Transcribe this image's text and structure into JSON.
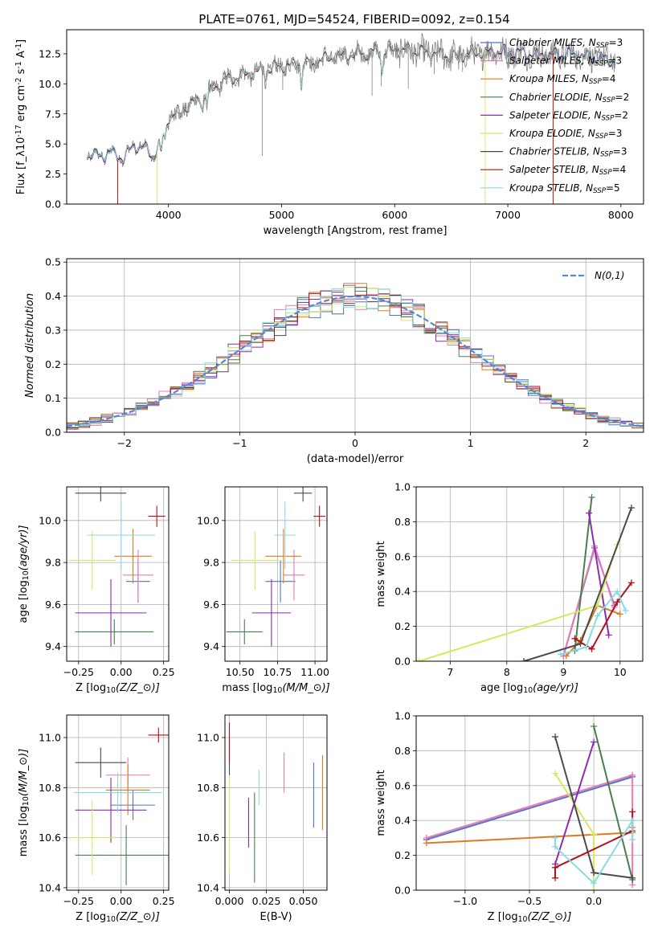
{
  "title": "PLATE=0761, MJD=54524, FIBERID=0092, z=0.154",
  "colors": {
    "Chabrier MILES": "#4f73cf",
    "Salpeter MILES": "#e978b3",
    "Kroupa MILES": "#e07a1f",
    "Chabrier ELODIE": "#4a7d4f",
    "Salpeter ELODIE": "#8e2ab0",
    "Kroupa ELODIE": "#d6e85f",
    "Chabrier STELIB": "#4a4a4a",
    "Salpeter STELIB": "#b0121b",
    "Kroupa STELIB": "#87dbe5",
    "data": "#808080",
    "normal": "#4f8ad6"
  },
  "legend_entries": [
    "Chabrier MILES, N$_{SSP}$=3",
    "Salpeter MILES, N$_{SSP}$=3",
    "Kroupa MILES, N$_{SSP}$=4",
    "Chabrier ELODIE, N$_{SSP}$=2",
    "Salpeter ELODIE, N$_{SSP}$=2",
    "Kroupa ELODIE, N$_{SSP}$=3",
    "Chabrier STELIB, N$_{SSP}$=3",
    "Salpeter STELIB, N$_{SSP}$=4",
    "Kroupa STELIB, N$_{SSP}$=5"
  ],
  "chart_data": [
    {
      "type": "line",
      "panel": "spectrum",
      "xlabel": "wavelength [Angstrom, rest frame]",
      "ylabel": "Flux [f$_\\lambda$10$^{-17}$ erg cm$^{-2}$ s$^{-1}$ A$^{-1}$]",
      "xlim": [
        3100,
        8200
      ],
      "ylim": [
        0,
        14.5
      ],
      "xticks": [
        "4000",
        "5000",
        "6000",
        "7000",
        "8000"
      ],
      "yticks": [
        "0.0",
        "2.5",
        "5.0",
        "7.5",
        "10.0",
        "12.5"
      ],
      "continuum_x": [
        3280,
        3400,
        3500,
        3600,
        3700,
        3800,
        3870,
        3950,
        4000,
        4100,
        4200,
        4300,
        4400,
        4500,
        4700,
        4900,
        5100,
        5300,
        5500,
        5700,
        5900,
        6100,
        6300,
        6500,
        6700,
        6900,
        7100,
        7300,
        7500,
        7700,
        7900
      ],
      "continuum_y": [
        4.1,
        4.0,
        4.3,
        3.8,
        4.9,
        4.6,
        3.9,
        5.8,
        7.2,
        7.8,
        8.3,
        8.9,
        9.6,
        10.3,
        10.8,
        11.3,
        11.6,
        11.9,
        12.3,
        12.5,
        12.7,
        12.8,
        12.6,
        12.3,
        12.5,
        12.7,
        12.6,
        12.4,
        12.5,
        12.3,
        12.0
      ],
      "grid": false,
      "legend": "right"
    },
    {
      "type": "step",
      "panel": "residuals",
      "xlabel": "(data-model)/error",
      "ylabel": "Normed distribution",
      "xlim": [
        -2.5,
        2.5
      ],
      "ylim": [
        0,
        0.51
      ],
      "xticks": [
        "−2",
        "−1",
        "0",
        "1",
        "2"
      ],
      "yticks": [
        "0.0",
        "0.1",
        "0.2",
        "0.3",
        "0.4",
        "0.5"
      ],
      "reference": {
        "label": "$\\mathcal{N}(0,1)$",
        "mean": 0,
        "sigma": 1
      },
      "bin_width": 0.1,
      "grid": true,
      "legend": "upper right"
    },
    {
      "type": "errorbar",
      "panel": "age-Z",
      "xlabel": "Z [log$_{10}$(Z/Z$_\\odot$)]",
      "ylabel": "age  [log$_{10}$(age/yr)]",
      "xlim": [
        -0.32,
        0.28
      ],
      "ylim": [
        9.33,
        10.16
      ],
      "xticks": [
        "−0.25",
        "0.00",
        "0.25"
      ],
      "yticks": [
        "9.4",
        "9.6",
        "9.8",
        "10.0"
      ],
      "grid": true,
      "points": [
        {
          "model": "Chabrier MILES",
          "x": 0.1,
          "xerr": 0.07,
          "y": 9.71,
          "yerr": 0.1
        },
        {
          "model": "Salpeter MILES",
          "x": 0.1,
          "xerr": 0.09,
          "y": 9.74,
          "yerr": 0.12
        },
        {
          "model": "Kroupa MILES",
          "x": 0.07,
          "xerr": 0.11,
          "y": 9.83,
          "yerr": 0.13
        },
        {
          "model": "Chabrier ELODIE",
          "x": -0.04,
          "xerr": 0.23,
          "y": 9.47,
          "yerr": 0.06
        },
        {
          "model": "Salpeter ELODIE",
          "x": -0.06,
          "xerr": 0.21,
          "y": 9.56,
          "yerr": 0.16
        },
        {
          "model": "Kroupa ELODIE",
          "x": -0.17,
          "xerr": 0.14,
          "y": 9.81,
          "yerr": 0.14
        },
        {
          "model": "Chabrier STELIB",
          "x": -0.12,
          "xerr": 0.15,
          "y": 10.13,
          "yerr": 0.04
        },
        {
          "model": "Salpeter STELIB",
          "x": 0.21,
          "xerr": 0.05,
          "y": 10.02,
          "yerr": 0.05
        },
        {
          "model": "Kroupa STELIB",
          "x": 0.0,
          "xerr": 0.2,
          "y": 9.93,
          "yerr": 0.16
        }
      ]
    },
    {
      "type": "errorbar",
      "panel": "age-mass",
      "xlabel": "mass [log$_{10}$(M/M$_\\odot$)]",
      "xlim": [
        10.4,
        11.08
      ],
      "ylim": [
        9.33,
        10.16
      ],
      "xticks": [
        "10.50",
        "10.75",
        "11.00"
      ],
      "yticks": [
        "9.4",
        "9.6",
        "9.8",
        "10.0"
      ],
      "grid": true,
      "points": [
        {
          "model": "Chabrier MILES",
          "x": 10.77,
          "xerr": 0.1,
          "y": 9.71,
          "yerr": 0.1
        },
        {
          "model": "Salpeter MILES",
          "x": 10.86,
          "xerr": 0.07,
          "y": 9.74,
          "yerr": 0.12
        },
        {
          "model": "Kroupa MILES",
          "x": 10.79,
          "xerr": 0.12,
          "y": 9.83,
          "yerr": 0.13
        },
        {
          "model": "Chabrier ELODIE",
          "x": 10.53,
          "xerr": 0.12,
          "y": 9.47,
          "yerr": 0.06
        },
        {
          "model": "Salpeter ELODIE",
          "x": 10.71,
          "xerr": 0.13,
          "y": 9.56,
          "yerr": 0.16
        },
        {
          "model": "Kroupa ELODIE",
          "x": 10.6,
          "xerr": 0.16,
          "y": 9.81,
          "yerr": 0.14
        },
        {
          "model": "Chabrier STELIB",
          "x": 10.92,
          "xerr": 0.06,
          "y": 10.13,
          "yerr": 0.04
        },
        {
          "model": "Salpeter STELIB",
          "x": 11.03,
          "xerr": 0.04,
          "y": 10.02,
          "yerr": 0.05
        },
        {
          "model": "Kroupa STELIB",
          "x": 10.8,
          "xerr": 0.07,
          "y": 9.93,
          "yerr": 0.16
        }
      ]
    },
    {
      "type": "line",
      "panel": "massweight-age",
      "xlabel": "age  [log$_{10}$(age/yr)]",
      "ylabel": "mass weight",
      "xlim": [
        6.4,
        10.4
      ],
      "ylim": [
        0,
        1.0
      ],
      "xticks": [
        "7",
        "8",
        "9",
        "10"
      ],
      "yticks": [
        "0.0",
        "0.2",
        "0.4",
        "0.6",
        "0.8",
        "1.0"
      ],
      "grid": true,
      "series": [
        {
          "model": "Chabrier MILES",
          "x": [
            9.0,
            9.55,
            9.9
          ],
          "y": [
            0.03,
            0.65,
            0.32
          ]
        },
        {
          "model": "Salpeter MILES",
          "x": [
            9.0,
            9.55,
            9.9
          ],
          "y": [
            0.03,
            0.66,
            0.31
          ]
        },
        {
          "model": "Kroupa MILES",
          "x": [
            9.05,
            9.3,
            9.6,
            10.0
          ],
          "y": [
            0.03,
            0.12,
            0.32,
            0.27
          ]
        },
        {
          "model": "Chabrier ELODIE",
          "x": [
            9.2,
            9.5
          ],
          "y": [
            0.06,
            0.94
          ]
        },
        {
          "model": "Salpeter ELODIE",
          "x": [
            9.45,
            9.8
          ],
          "y": [
            0.85,
            0.15
          ]
        },
        {
          "model": "Kroupa ELODIE",
          "x": [
            6.45,
            9.6,
            9.95
          ],
          "y": [
            0.0,
            0.32,
            0.67
          ]
        },
        {
          "model": "Chabrier STELIB",
          "x": [
            8.3,
            9.3,
            10.2
          ],
          "y": [
            0.0,
            0.1,
            0.88
          ]
        },
        {
          "model": "Salpeter STELIB",
          "x": [
            9.2,
            9.5,
            9.95,
            10.2
          ],
          "y": [
            0.13,
            0.07,
            0.34,
            0.45
          ]
        },
        {
          "model": "Kroupa STELIB",
          "x": [
            8.95,
            9.4,
            9.6,
            9.95,
            10.1
          ],
          "y": [
            0.04,
            0.08,
            0.26,
            0.4,
            0.29
          ]
        }
      ]
    },
    {
      "type": "errorbar",
      "panel": "mass-Z",
      "xlabel": "Z [log$_{10}$(Z/Z$_\\odot$)]",
      "ylabel": "mass [log$_{10}$(M/M$_\\odot$)]",
      "xlim": [
        -0.32,
        0.28
      ],
      "ylim": [
        10.39,
        11.09
      ],
      "xticks": [
        "−0.25",
        "0.00",
        "0.25"
      ],
      "yticks": [
        "10.4",
        "10.6",
        "10.8",
        "11.0"
      ],
      "grid": true,
      "points": [
        {
          "model": "Chabrier MILES",
          "x": 0.07,
          "xerr": 0.13,
          "y": 10.73,
          "yerr": 0.06
        },
        {
          "model": "Salpeter MILES",
          "x": 0.04,
          "xerr": 0.13,
          "y": 10.85,
          "yerr": 0.07
        },
        {
          "model": "Kroupa MILES",
          "x": 0.04,
          "xerr": 0.13,
          "y": 10.79,
          "yerr": 0.1
        },
        {
          "model": "Chabrier ELODIE",
          "x": 0.03,
          "xerr": 0.3,
          "y": 10.53,
          "yerr": 0.12
        },
        {
          "model": "Salpeter ELODIE",
          "x": -0.06,
          "xerr": 0.21,
          "y": 10.71,
          "yerr": 0.13
        },
        {
          "model": "Kroupa ELODIE",
          "x": -0.17,
          "xerr": 0.14,
          "y": 10.6,
          "yerr": 0.15
        },
        {
          "model": "Chabrier STELIB",
          "x": -0.12,
          "xerr": 0.15,
          "y": 10.9,
          "yerr": 0.06
        },
        {
          "model": "Salpeter STELIB",
          "x": 0.22,
          "xerr": 0.06,
          "y": 11.01,
          "yerr": 0.03
        },
        {
          "model": "Kroupa STELIB",
          "x": -0.02,
          "xerr": 0.26,
          "y": 10.78,
          "yerr": 0.08
        }
      ]
    },
    {
      "type": "errorbar",
      "panel": "mass-EBV",
      "xlabel": "E(B-V)",
      "xlim": [
        -0.003,
        0.066
      ],
      "ylim": [
        10.39,
        11.09
      ],
      "xticks": [
        "0.000",
        "0.025",
        "0.050"
      ],
      "yticks": [
        "10.4",
        "10.6",
        "10.8",
        "11.0"
      ],
      "grid": true,
      "points": [
        {
          "model": "Chabrier MILES",
          "x": 0.057,
          "y": 10.77,
          "yerr": 0.13
        },
        {
          "model": "Salpeter MILES",
          "x": 0.037,
          "y": 10.86,
          "yerr": 0.08
        },
        {
          "model": "Kroupa MILES",
          "x": 0.063,
          "y": 10.78,
          "yerr": 0.15
        },
        {
          "model": "Chabrier ELODIE",
          "x": 0.017,
          "y": 10.6,
          "yerr": 0.18
        },
        {
          "model": "Salpeter ELODIE",
          "x": 0.013,
          "y": 10.66,
          "yerr": 0.1
        },
        {
          "model": "Kroupa ELODIE",
          "x": 0.0,
          "y": 10.66,
          "yerr": 0.2
        },
        {
          "model": "Chabrier STELIB",
          "x": 0.0,
          "y": 10.93,
          "yerr": 0.08
        },
        {
          "model": "Salpeter STELIB",
          "x": 0.0,
          "y": 10.98,
          "yerr": 0.08
        },
        {
          "model": "Kroupa STELIB",
          "x": 0.02,
          "y": 10.8,
          "yerr": 0.07
        }
      ]
    },
    {
      "type": "line",
      "panel": "massweight-Z",
      "xlabel": "Z [log$_{10}$(Z/Z$_\\odot$)]",
      "ylabel": "mass weight",
      "xlim": [
        -1.38,
        0.38
      ],
      "ylim": [
        0,
        1.0
      ],
      "xticks": [
        "−1.0",
        "−0.5",
        "0.0"
      ],
      "yticks": [
        "0.0",
        "0.2",
        "0.4",
        "0.6",
        "0.8",
        "1.0"
      ],
      "grid": true,
      "series": [
        {
          "model": "Chabrier MILES",
          "x": [
            -1.3,
            0.3
          ],
          "y": [
            0.29,
            0.65
          ]
        },
        {
          "model": "Salpeter MILES",
          "x": [
            -1.3,
            0.3,
            0.3
          ],
          "y": [
            0.3,
            0.66,
            0.03
          ]
        },
        {
          "model": "Kroupa MILES",
          "x": [
            -1.3,
            0.3,
            0.3
          ],
          "y": [
            0.27,
            0.33,
            0.36
          ]
        },
        {
          "model": "Chabrier ELODIE",
          "x": [
            0.0,
            0.3
          ],
          "y": [
            0.94,
            0.06
          ]
        },
        {
          "model": "Salpeter ELODIE",
          "x": [
            -0.3,
            0.0
          ],
          "y": [
            0.15,
            0.85
          ]
        },
        {
          "model": "Kroupa ELODIE",
          "x": [
            -0.3,
            0.0,
            0.0
          ],
          "y": [
            0.67,
            0.32,
            0.0
          ]
        },
        {
          "model": "Chabrier STELIB",
          "x": [
            -0.3,
            0.0,
            0.3
          ],
          "y": [
            0.88,
            0.1,
            0.07
          ]
        },
        {
          "model": "Salpeter STELIB",
          "x": [
            -0.3,
            -0.3,
            0.3,
            0.3
          ],
          "y": [
            0.07,
            0.13,
            0.34,
            0.45
          ]
        },
        {
          "model": "Kroupa STELIB",
          "x": [
            -0.3,
            -0.3,
            0.0,
            0.3,
            0.3
          ],
          "y": [
            0.3,
            0.25,
            0.04,
            0.4,
            0.29
          ]
        }
      ]
    }
  ]
}
